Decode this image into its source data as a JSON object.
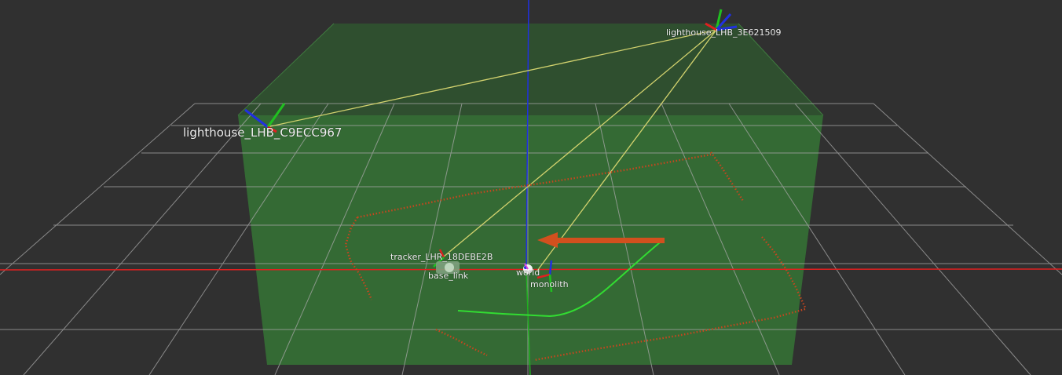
{
  "view": {
    "background_color": "#303030",
    "grid_color": "#a0a0a0",
    "volume_color": "#3c8c3c",
    "laser_color": "#c8461e",
    "ray_color": "#d2d26e",
    "path_color": "#32dc32",
    "arrow_color": "#d2501e"
  },
  "frames": {
    "lighthouse_c9": "lighthouse_LHB_C9ECC967",
    "lighthouse_e6": "lighthouse_LHB_3E621509",
    "tracker": "tracker_LHR_18DEBE2B",
    "base_link": "base_link",
    "world": "world",
    "monolith": "monolith"
  }
}
